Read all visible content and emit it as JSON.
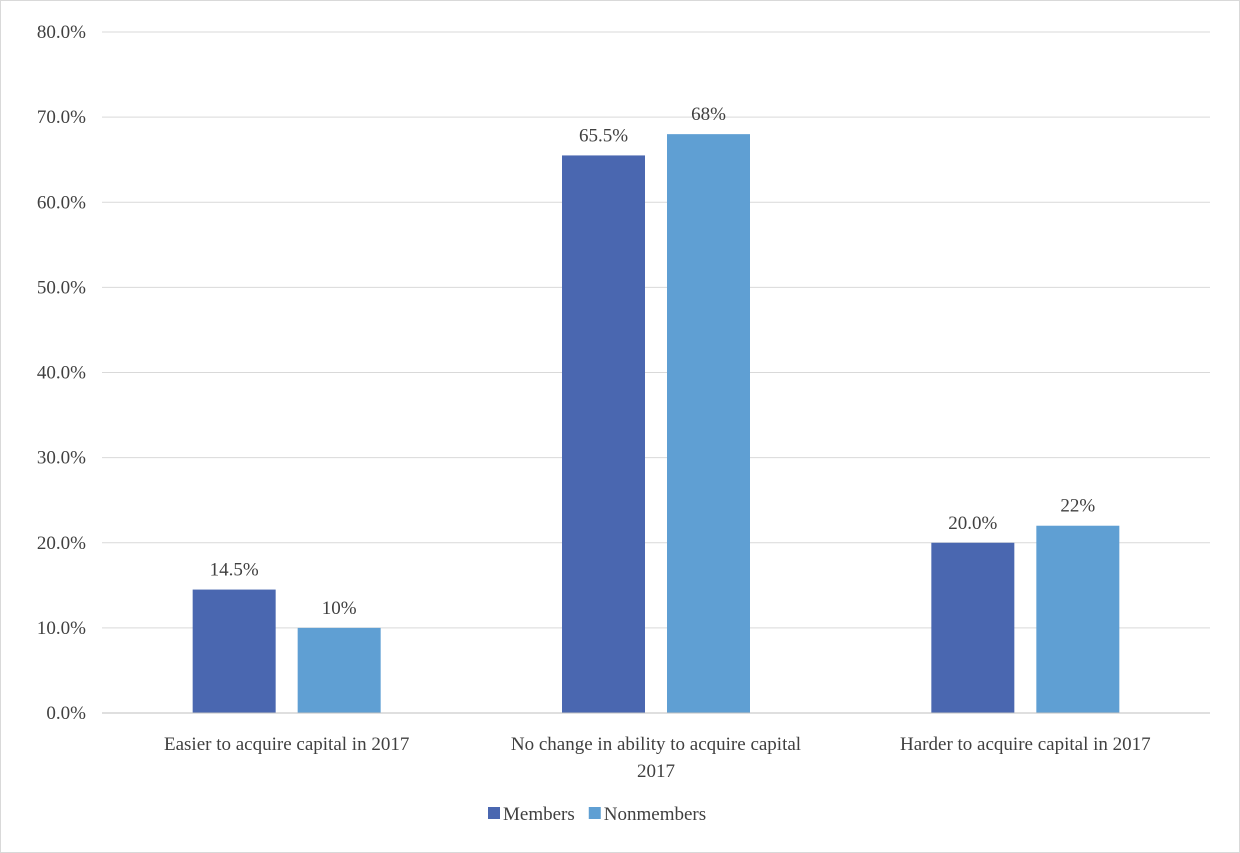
{
  "chart_data": {
    "type": "bar",
    "title": "",
    "xlabel": "",
    "ylabel": "",
    "categories": [
      [
        "Easier to acquire capital in 2017"
      ],
      [
        "No change in ability to acquire capital",
        "2017"
      ],
      [
        "Harder to acquire capital in 2017"
      ]
    ],
    "series": [
      {
        "name": "Members",
        "color": "#4a67b0",
        "values": [
          14.5,
          65.5,
          20.0
        ],
        "labels": [
          "14.5%",
          "65.5%",
          "20.0%"
        ]
      },
      {
        "name": "Nonmembers",
        "color": "#5f9fd3",
        "values": [
          10,
          68,
          22
        ],
        "labels": [
          "10%",
          "68%",
          "22%"
        ]
      }
    ],
    "ylim": [
      0,
      80
    ],
    "yticks": [
      "0.0%",
      "10.0%",
      "20.0%",
      "30.0%",
      "40.0%",
      "50.0%",
      "60.0%",
      "70.0%",
      "80.0%"
    ],
    "grid": true,
    "legend_position": "bottom"
  }
}
